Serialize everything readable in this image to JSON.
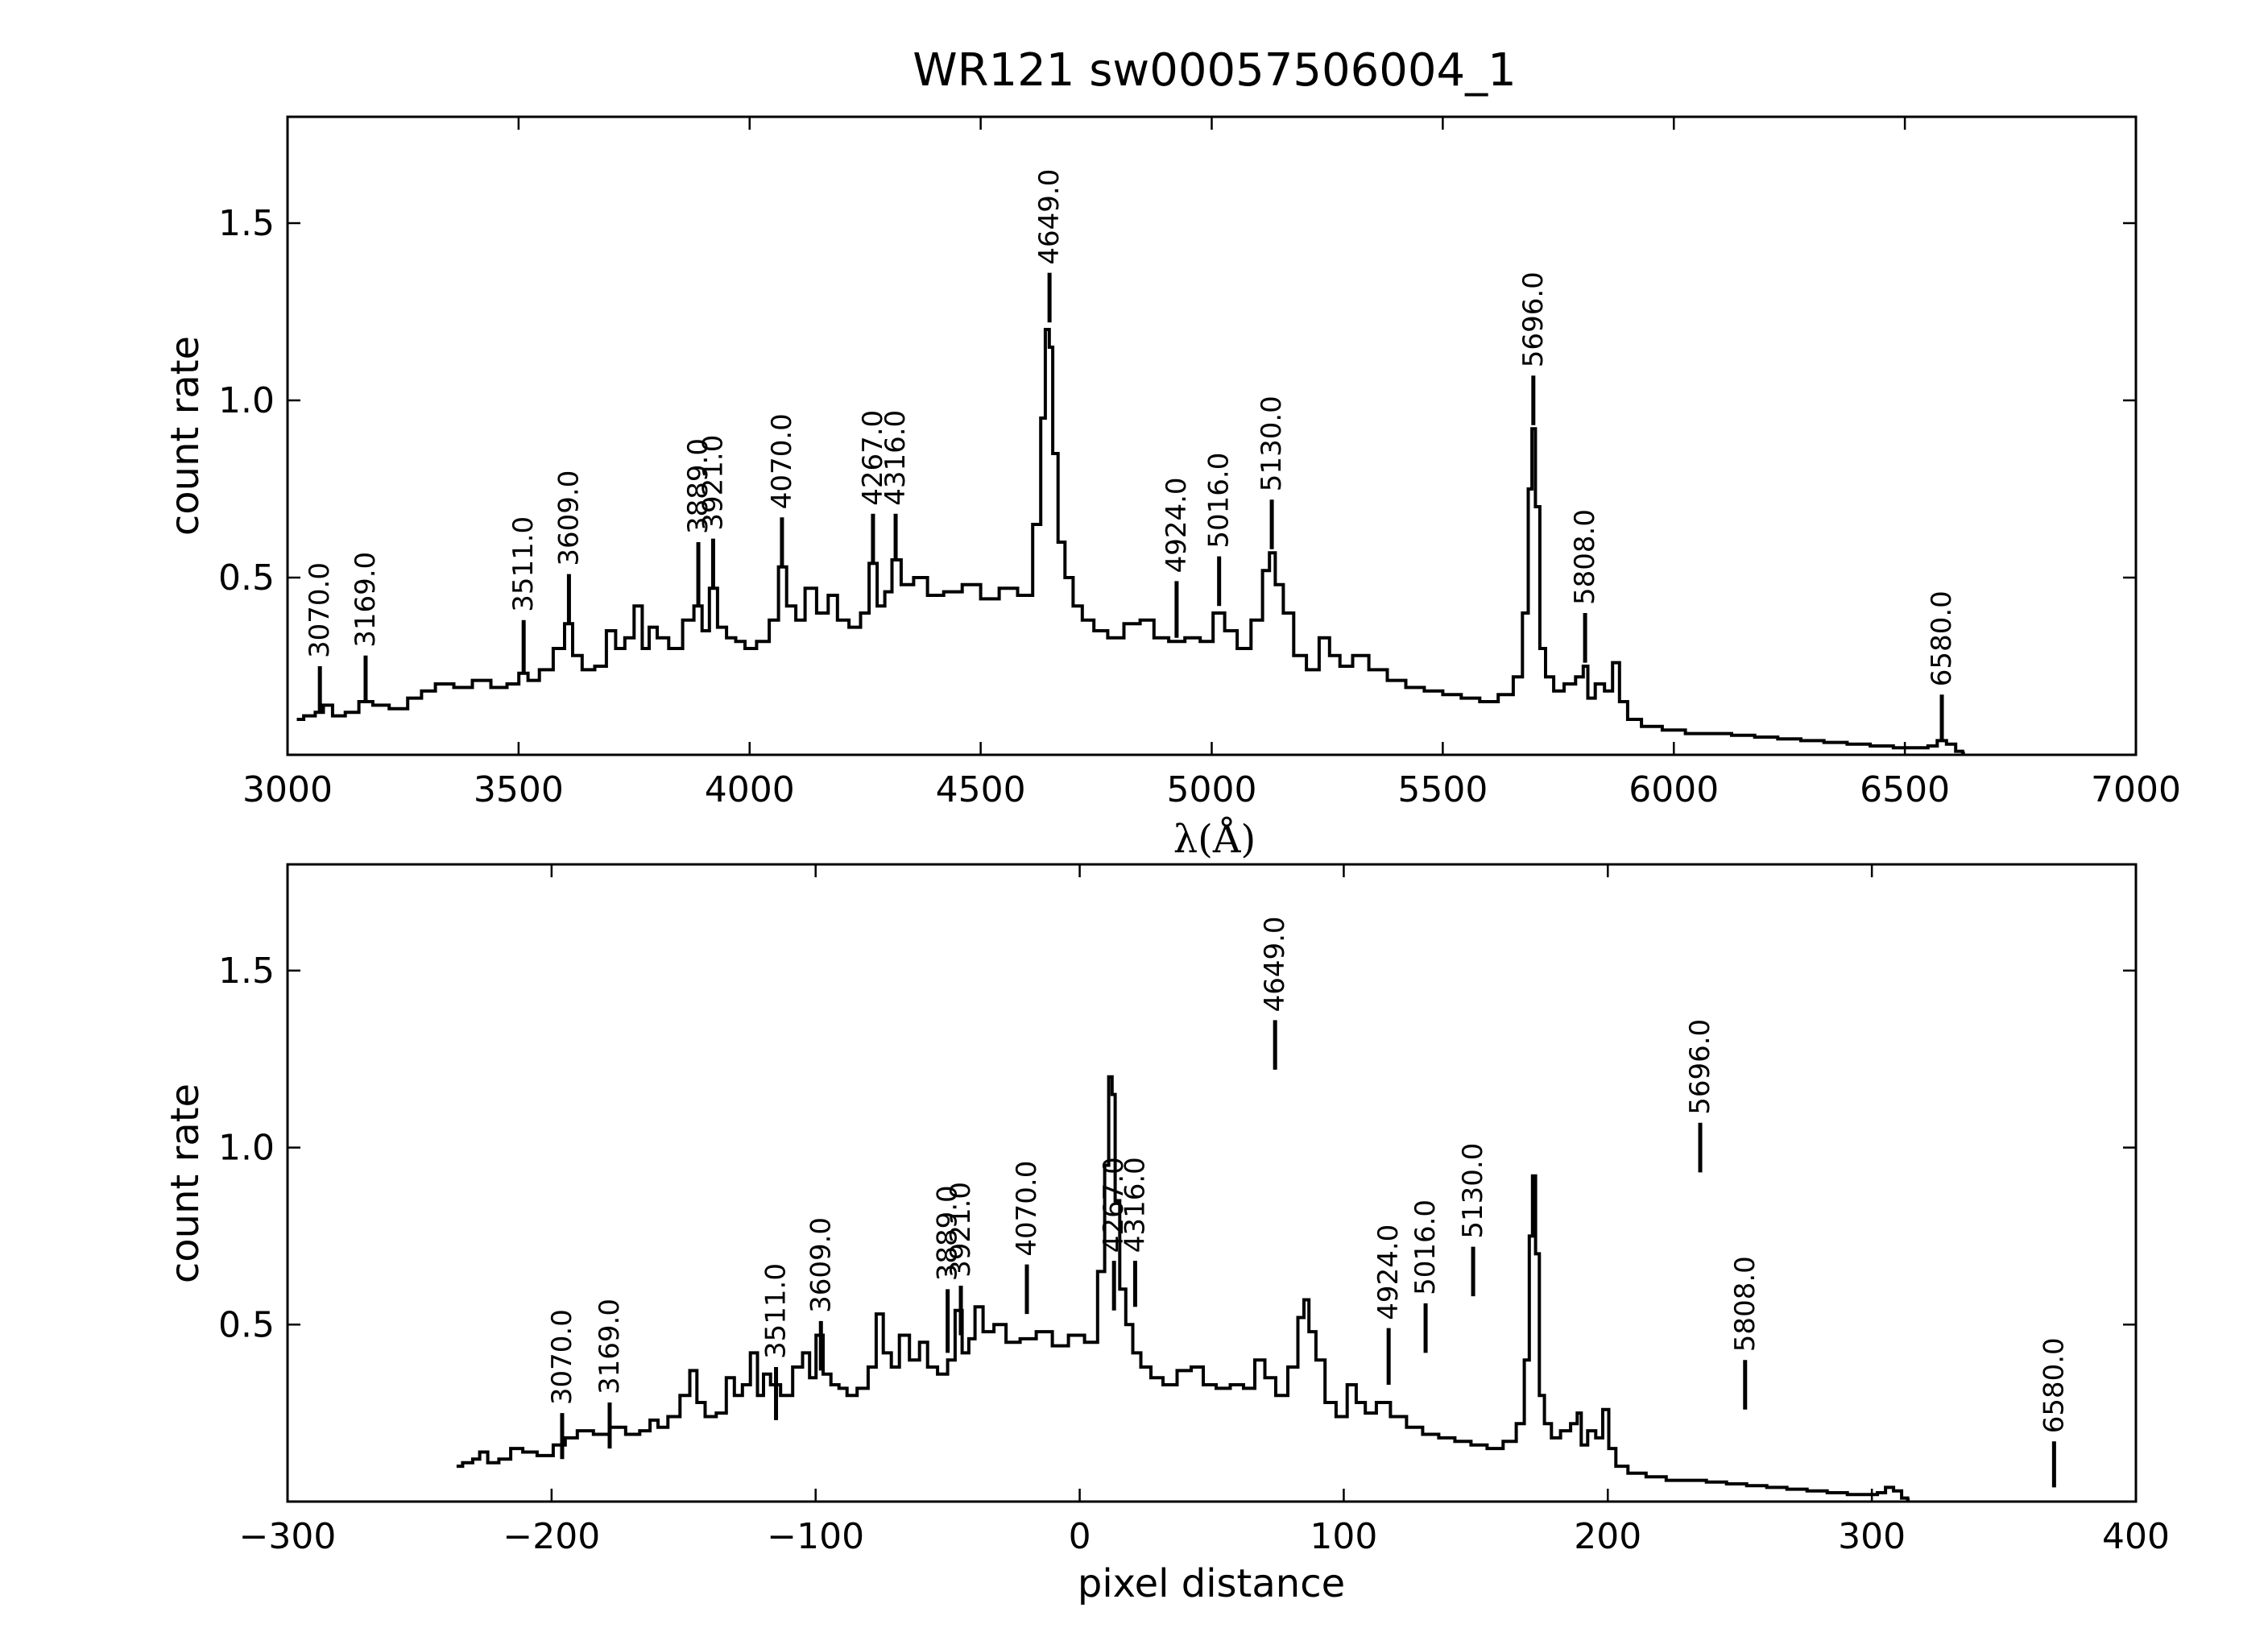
{
  "title": "WR121  sw00057506004_1",
  "chart_data": [
    {
      "type": "line",
      "name": "wavelength-panel",
      "xlabel": "λ(Å)",
      "ylabel": "count rate",
      "xlim": [
        3000,
        7000
      ],
      "ylim": [
        0.0,
        1.8
      ],
      "xticks": [
        3000,
        3500,
        4000,
        4500,
        5000,
        5500,
        6000,
        6500,
        7000
      ],
      "xtick_labels": [
        "3000",
        "3500",
        "4000",
        "4500",
        "5000",
        "5500",
        "6000",
        "6500",
        "7000"
      ],
      "yticks": [
        0.5,
        1.0,
        1.5
      ],
      "ytick_labels": [
        "0.5",
        "1.0",
        "1.5"
      ],
      "spectrum": {
        "x": [
          3020,
          3050,
          3070,
          3085,
          3110,
          3140,
          3169,
          3200,
          3240,
          3280,
          3300,
          3340,
          3380,
          3420,
          3460,
          3490,
          3511,
          3530,
          3560,
          3590,
          3609,
          3625,
          3650,
          3680,
          3700,
          3720,
          3740,
          3760,
          3775,
          3790,
          3810,
          3840,
          3870,
          3889,
          3905,
          3921,
          3940,
          3960,
          3980,
          4000,
          4030,
          4055,
          4070,
          4090,
          4110,
          4130,
          4160,
          4180,
          4200,
          4230,
          4250,
          4267,
          4285,
          4300,
          4316,
          4340,
          4370,
          4400,
          4440,
          4480,
          4520,
          4560,
          4600,
          4625,
          4635,
          4645,
          4652,
          4660,
          4675,
          4690,
          4710,
          4730,
          4760,
          4790,
          4830,
          4860,
          4890,
          4924,
          4960,
          4990,
          5016,
          5040,
          5070,
          5100,
          5120,
          5130,
          5145,
          5165,
          5190,
          5220,
          5245,
          5265,
          5290,
          5320,
          5360,
          5400,
          5440,
          5480,
          5520,
          5560,
          5600,
          5640,
          5665,
          5680,
          5690,
          5696,
          5705,
          5715,
          5730,
          5750,
          5775,
          5800,
          5808,
          5820,
          5840,
          5860,
          5875,
          5890,
          5910,
          5950,
          6000,
          6050,
          6100,
          6150,
          6200,
          6250,
          6300,
          6350,
          6400,
          6450,
          6500,
          6540,
          6560,
          6580,
          6600,
          6620,
          6630
        ],
        "y": [
          0.1,
          0.11,
          0.12,
          0.14,
          0.11,
          0.12,
          0.15,
          0.14,
          0.13,
          0.16,
          0.18,
          0.2,
          0.19,
          0.21,
          0.19,
          0.2,
          0.23,
          0.21,
          0.24,
          0.3,
          0.37,
          0.28,
          0.24,
          0.25,
          0.35,
          0.3,
          0.33,
          0.42,
          0.3,
          0.36,
          0.33,
          0.3,
          0.38,
          0.42,
          0.35,
          0.47,
          0.36,
          0.33,
          0.32,
          0.3,
          0.32,
          0.38,
          0.53,
          0.42,
          0.38,
          0.47,
          0.4,
          0.45,
          0.38,
          0.36,
          0.4,
          0.54,
          0.42,
          0.46,
          0.55,
          0.48,
          0.5,
          0.45,
          0.46,
          0.48,
          0.44,
          0.47,
          0.45,
          0.65,
          0.95,
          1.2,
          1.15,
          0.85,
          0.6,
          0.5,
          0.42,
          0.38,
          0.35,
          0.33,
          0.37,
          0.38,
          0.33,
          0.32,
          0.33,
          0.32,
          0.4,
          0.35,
          0.3,
          0.38,
          0.52,
          0.57,
          0.48,
          0.4,
          0.28,
          0.24,
          0.33,
          0.28,
          0.25,
          0.28,
          0.24,
          0.21,
          0.19,
          0.18,
          0.17,
          0.16,
          0.15,
          0.17,
          0.22,
          0.4,
          0.75,
          0.92,
          0.7,
          0.3,
          0.22,
          0.18,
          0.2,
          0.22,
          0.25,
          0.16,
          0.2,
          0.18,
          0.26,
          0.15,
          0.1,
          0.08,
          0.07,
          0.06,
          0.06,
          0.055,
          0.05,
          0.045,
          0.04,
          0.035,
          0.03,
          0.025,
          0.02,
          0.02,
          0.025,
          0.04,
          0.03,
          0.01,
          0.005
        ]
      },
      "line_markers": [
        {
          "x": 3070,
          "label": "3070.0",
          "y_base": 0.12,
          "y_top": 0.25
        },
        {
          "x": 3169,
          "label": "3169.0",
          "y_base": 0.15,
          "y_top": 0.28
        },
        {
          "x": 3511,
          "label": "3511.0",
          "y_base": 0.23,
          "y_top": 0.38
        },
        {
          "x": 3609,
          "label": "3609.0",
          "y_base": 0.37,
          "y_top": 0.51
        },
        {
          "x": 3889,
          "label": "3889.0",
          "y_base": 0.42,
          "y_top": 0.6
        },
        {
          "x": 3921,
          "label": "3921.0",
          "y_base": 0.47,
          "y_top": 0.61
        },
        {
          "x": 4070,
          "label": "4070.0",
          "y_base": 0.53,
          "y_top": 0.67
        },
        {
          "x": 4267,
          "label": "4267.0",
          "y_base": 0.54,
          "y_top": 0.68
        },
        {
          "x": 4316,
          "label": "4316.0",
          "y_base": 0.55,
          "y_top": 0.68
        },
        {
          "x": 4649,
          "label": "4649.0",
          "y_base": 1.22,
          "y_top": 1.36
        },
        {
          "x": 4924,
          "label": "4924.0",
          "y_base": 0.33,
          "y_top": 0.49
        },
        {
          "x": 5016,
          "label": "5016.0",
          "y_base": 0.42,
          "y_top": 0.56
        },
        {
          "x": 5130,
          "label": "5130.0",
          "y_base": 0.58,
          "y_top": 0.72
        },
        {
          "x": 5696,
          "label": "5696.0",
          "y_base": 0.93,
          "y_top": 1.07
        },
        {
          "x": 5808,
          "label": "5808.0",
          "y_base": 0.26,
          "y_top": 0.4
        },
        {
          "x": 6580,
          "label": "6580.0",
          "y_base": 0.04,
          "y_top": 0.17
        }
      ]
    },
    {
      "type": "line",
      "name": "pixel-panel",
      "xlabel": "pixel distance",
      "ylabel": "count rate",
      "xlim": [
        -300,
        400
      ],
      "ylim": [
        0.0,
        1.8
      ],
      "xticks": [
        -300,
        -200,
        -100,
        0,
        100,
        200,
        300,
        400
      ],
      "xtick_labels": [
        "−300",
        "−200",
        "−100",
        "0",
        "100",
        "200",
        "300",
        "400"
      ],
      "yticks": [
        0.5,
        1.0,
        1.5
      ],
      "ytick_labels": [
        "0.5",
        "1.0",
        "1.5"
      ],
      "spectrum_from_panel": 0,
      "line_markers": [
        {
          "x": -196,
          "label": "3070.0"
        },
        {
          "x": -178,
          "label": "3169.0"
        },
        {
          "x": -115,
          "label": "3511.0"
        },
        {
          "x": -98,
          "label": "3609.0"
        },
        {
          "x": -50,
          "label": "3889.0"
        },
        {
          "x": -45,
          "label": "3921.0"
        },
        {
          "x": -20,
          "label": "4070.0"
        },
        {
          "x": 13,
          "label": "4267.0"
        },
        {
          "x": 21,
          "label": "4316.0"
        },
        {
          "x": 74,
          "label": "4649.0"
        },
        {
          "x": 117,
          "label": "4924.0"
        },
        {
          "x": 131,
          "label": "5016.0"
        },
        {
          "x": 149,
          "label": "5130.0"
        },
        {
          "x": 235,
          "label": "5696.0"
        },
        {
          "x": 252,
          "label": "5808.0"
        },
        {
          "x": 369,
          "label": "6580.0"
        }
      ]
    }
  ]
}
